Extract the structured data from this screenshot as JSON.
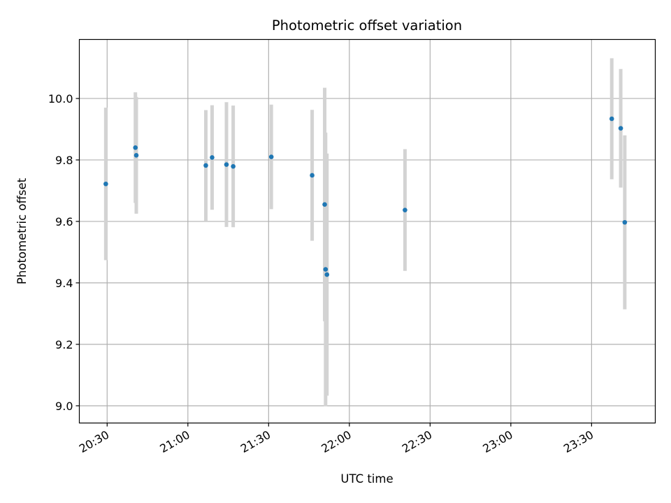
{
  "chart_data": {
    "type": "scatter",
    "title": "Photometric offset variation",
    "xlabel": "UTC time",
    "ylabel": "Photometric offset",
    "x_tick_labels": [
      "20:30",
      "21:00",
      "21:30",
      "22:00",
      "22:30",
      "23:00",
      "23:30"
    ],
    "x_tick_values": [
      "20:30",
      "21:00",
      "21:30",
      "22:00",
      "22:30",
      "23:00",
      "23:30"
    ],
    "y_tick_labels": [
      "9.0",
      "9.2",
      "9.4",
      "9.6",
      "9.8",
      "10.0"
    ],
    "y_tick_values": [
      9.0,
      9.2,
      9.4,
      9.6,
      9.8,
      10.0
    ],
    "xlim": [
      "20:19:40",
      "23:53:40"
    ],
    "ylim": [
      8.944,
      10.192
    ],
    "grid": true,
    "colors": {
      "points": "#1f77b4",
      "error_bars": "#d3d3d3",
      "grid": "#b0b0b0"
    },
    "points": [
      {
        "time": "20:29:30",
        "y": 9.722,
        "err": 0.248
      },
      {
        "time": "20:40:30",
        "y": 9.84,
        "err": 0.18
      },
      {
        "time": "20:40:50",
        "y": 9.815,
        "err": 0.19
      },
      {
        "time": "21:06:40",
        "y": 9.782,
        "err": 0.18
      },
      {
        "time": "21:09:00",
        "y": 9.808,
        "err": 0.17
      },
      {
        "time": "21:14:20",
        "y": 9.785,
        "err": 0.203
      },
      {
        "time": "21:16:50",
        "y": 9.779,
        "err": 0.198
      },
      {
        "time": "21:31:00",
        "y": 9.81,
        "err": 0.17
      },
      {
        "time": "21:46:10",
        "y": 9.75,
        "err": 0.213
      },
      {
        "time": "21:50:50",
        "y": 9.655,
        "err": 0.38
      },
      {
        "time": "21:51:10",
        "y": 9.444,
        "err": 0.445
      },
      {
        "time": "21:51:40",
        "y": 9.427,
        "err": 0.394
      },
      {
        "time": "22:20:40",
        "y": 9.637,
        "err": 0.198
      },
      {
        "time": "23:37:30",
        "y": 9.934,
        "err": 0.197
      },
      {
        "time": "23:40:50",
        "y": 9.903,
        "err": 0.193
      },
      {
        "time": "23:42:20",
        "y": 9.597,
        "err": 0.283
      }
    ]
  }
}
